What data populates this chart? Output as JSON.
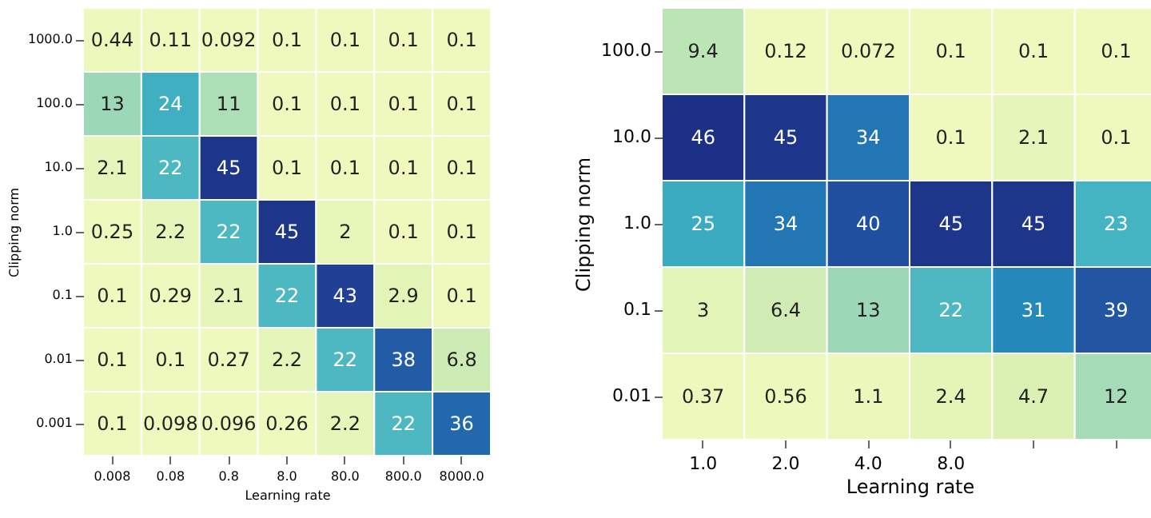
{
  "chart_data": [
    {
      "type": "heatmap",
      "xlabel": "Learning rate",
      "ylabel": "Clipping norm",
      "categories": [
        "0.008",
        "0.08",
        "0.8",
        "8.0",
        "80.0",
        "800.0",
        "8000.0"
      ],
      "y_categories": [
        "1000.0",
        "100.0",
        "10.0",
        "1.0",
        "0.1",
        "0.01",
        "0.001"
      ],
      "cells": [
        [
          0.44,
          0.11,
          0.092,
          0.1,
          0.1,
          0.1,
          0.1
        ],
        [
          13,
          24,
          11,
          0.1,
          0.1,
          0.1,
          0.1
        ],
        [
          2.1,
          22,
          45,
          0.1,
          0.1,
          0.1,
          0.1
        ],
        [
          0.25,
          2.2,
          22,
          45,
          2,
          0.1,
          0.1
        ],
        [
          0.1,
          0.29,
          2.1,
          22,
          43,
          2.9,
          0.1
        ],
        [
          0.1,
          0.1,
          0.27,
          2.2,
          22,
          38,
          6.8
        ],
        [
          0.1,
          0.098,
          0.096,
          0.26,
          2.2,
          22,
          36
        ]
      ],
      "data_labels": true
    },
    {
      "type": "heatmap",
      "xlabel": "Learning rate",
      "ylabel": "Clipping norm",
      "categories": [
        "1.0",
        "2.0",
        "4.0",
        "8.0",
        null,
        null
      ],
      "y_categories": [
        "100.0",
        "10.0",
        "1.0",
        "0.1",
        "0.01"
      ],
      "cells": [
        [
          9.4,
          0.12,
          0.072,
          0.1,
          0.1,
          0.1
        ],
        [
          46,
          45,
          34,
          0.1,
          2.1,
          0.1
        ],
        [
          25,
          34,
          40,
          45,
          45,
          23
        ],
        [
          3,
          6.4,
          13,
          22,
          31,
          39
        ],
        [
          0.37,
          0.56,
          1.1,
          2.4,
          4.7,
          12
        ]
      ],
      "data_labels": true
    }
  ]
}
